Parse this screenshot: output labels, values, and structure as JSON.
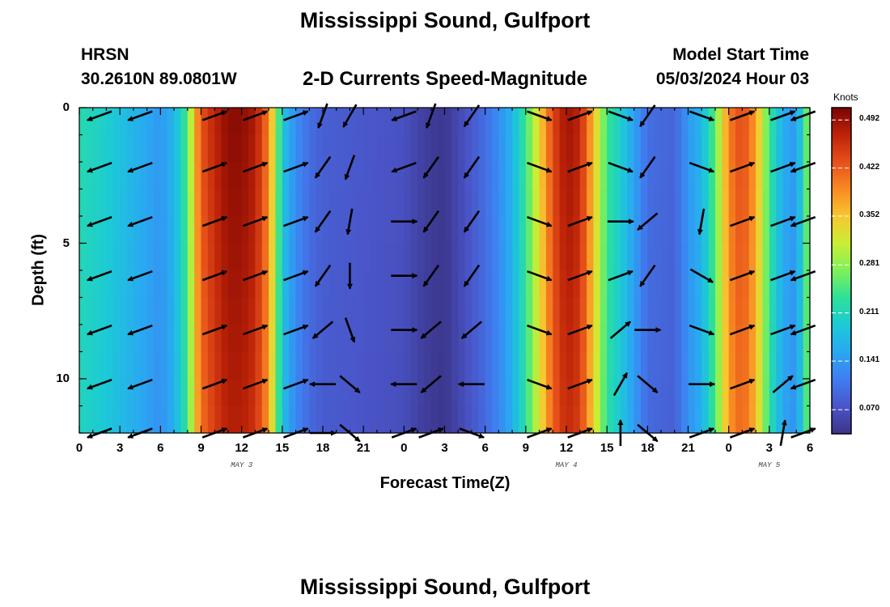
{
  "header": {
    "title": "Mississippi Sound, Gulfport",
    "station": "HRSN",
    "coords": "30.2610N  89.0801W",
    "subtitle": "2-D Currents Speed-Magnitude",
    "model_start_label": "Model Start Time",
    "model_start_value": "05/03/2024 Hour 03",
    "footer_title": "Mississippi Sound, Gulfport"
  },
  "colors": {
    "background": "#ffffff",
    "arrow": "#000000",
    "colormap": [
      "#3b3488",
      "#4a55c8",
      "#3f7df0",
      "#2aa7f2",
      "#1ccad6",
      "#2de09a",
      "#7ef059",
      "#c9ee35",
      "#f6c730",
      "#f98a22",
      "#e6501a",
      "#bc2308",
      "#7a0403"
    ]
  },
  "chart_data": {
    "type": "heatmap",
    "title": "2-D Currents Speed-Magnitude",
    "xlabel": "Forecast Time(Z)",
    "ylabel": "Depth (ft)",
    "x_tick_labels": [
      "0",
      "3",
      "6",
      "9",
      "12",
      "15",
      "18",
      "21",
      "0",
      "3",
      "6",
      "9",
      "12",
      "15",
      "18",
      "21",
      "0",
      "3",
      "6"
    ],
    "x_tick_hours": [
      0,
      3,
      6,
      9,
      12,
      15,
      18,
      21,
      24,
      27,
      30,
      33,
      36,
      39,
      42,
      45,
      48,
      51,
      54
    ],
    "x_range_hours": [
      0,
      54
    ],
    "date_labels": [
      {
        "label": "MAY 3",
        "hour": 12
      },
      {
        "label": "MAY 4",
        "hour": 36
      },
      {
        "label": "MAY 5",
        "hour": 51
      }
    ],
    "y_tick_labels": [
      "0",
      "5",
      "10"
    ],
    "y_ticks": [
      0,
      5,
      10
    ],
    "y_range": [
      0,
      12
    ],
    "y_inverted": true,
    "colorbar": {
      "label": "Knots",
      "ticks": [
        "0.070",
        "0.141",
        "0.211",
        "0.281",
        "0.352",
        "0.422",
        "0.492"
      ],
      "tick_values": [
        0.07,
        0.141,
        0.211,
        0.281,
        0.352,
        0.422,
        0.492
      ],
      "range": [
        0.035,
        0.51
      ]
    },
    "speed_profile_knots": {
      "hours": [
        0,
        2,
        4,
        6,
        7,
        8,
        8.5,
        9,
        10,
        11,
        12,
        13,
        14,
        14.5,
        15,
        16,
        17,
        18,
        20,
        22,
        24,
        25,
        26,
        27,
        28,
        29,
        30,
        31,
        32,
        33,
        34,
        35,
        36,
        37,
        38,
        39,
        40,
        42,
        44,
        45,
        46,
        47,
        48,
        49,
        50,
        51,
        52,
        53,
        54
      ],
      "values": [
        0.22,
        0.2,
        0.17,
        0.14,
        0.17,
        0.25,
        0.36,
        0.43,
        0.47,
        0.5,
        0.5,
        0.48,
        0.4,
        0.3,
        0.19,
        0.13,
        0.1,
        0.085,
        0.08,
        0.075,
        0.07,
        0.055,
        0.045,
        0.04,
        0.06,
        0.08,
        0.1,
        0.13,
        0.17,
        0.24,
        0.34,
        0.44,
        0.49,
        0.47,
        0.36,
        0.24,
        0.2,
        0.1,
        0.09,
        0.14,
        0.17,
        0.26,
        0.4,
        0.44,
        0.38,
        0.24,
        0.16,
        0.14,
        0.3
      ]
    },
    "arrow_columns_hours": [
      1.5,
      4.5,
      10,
      13,
      16,
      18,
      20,
      24,
      26,
      29,
      34,
      37,
      40,
      42,
      46,
      49,
      52,
      53.5
    ],
    "arrow_rows_depth_ft": [
      0.3,
      2.2,
      4.2,
      6.2,
      8.2,
      10.2,
      12.0
    ],
    "arrow_angles_deg": [
      [
        200,
        200,
        20,
        20,
        20,
        250,
        240,
        200,
        250,
        235,
        340,
        20,
        340,
        235,
        340,
        20,
        20,
        200
      ],
      [
        200,
        200,
        20,
        20,
        20,
        235,
        250,
        200,
        235,
        235,
        340,
        20,
        340,
        235,
        340,
        20,
        20,
        200
      ],
      [
        200,
        200,
        20,
        20,
        20,
        235,
        260,
        0,
        235,
        235,
        340,
        20,
        0,
        220,
        260,
        20,
        20,
        200
      ],
      [
        200,
        200,
        20,
        20,
        20,
        235,
        270,
        0,
        235,
        235,
        340,
        20,
        20,
        235,
        330,
        20,
        20,
        200
      ],
      [
        200,
        200,
        20,
        20,
        20,
        220,
        290,
        0,
        220,
        220,
        340,
        20,
        40,
        0,
        340,
        20,
        20,
        200
      ],
      [
        200,
        200,
        20,
        20,
        20,
        180,
        320,
        180,
        220,
        180,
        340,
        20,
        60,
        320,
        0,
        20,
        40,
        200
      ],
      [
        200,
        200,
        20,
        20,
        20,
        0,
        320,
        20,
        20,
        340,
        20,
        20,
        90,
        320,
        20,
        20,
        80,
        20
      ]
    ]
  }
}
